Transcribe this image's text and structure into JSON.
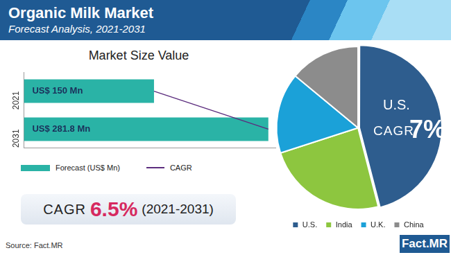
{
  "header": {
    "title": "Organic Milk Market",
    "subtitle": "Forecast Analysis, 2021-2031"
  },
  "chart_data": [
    {
      "type": "bar",
      "title": "Market Size Value",
      "orientation": "horizontal",
      "categories": [
        "2021",
        "2031"
      ],
      "series": [
        {
          "name": "Forecast (US$ Mn)",
          "type": "bar",
          "color": "#2ab3a6",
          "values": [
            150,
            281.8
          ],
          "value_labels": [
            "US$ 150 Mn",
            "US$ 281.8 Mn"
          ]
        },
        {
          "name": "CAGR",
          "type": "line",
          "color": "#5c2d7e",
          "values": [
            150,
            281.8
          ]
        }
      ],
      "xlim": [
        0,
        290
      ],
      "tick_labels": "y",
      "grid": false,
      "legend": "bottom",
      "data_labels": true,
      "annotations": [
        {
          "text": "CAGR"
        },
        {
          "text": "6.5%"
        },
        {
          "text": "(2021-2031)"
        }
      ]
    },
    {
      "type": "pie",
      "categories": [
        "U.S.",
        "India",
        "U.K.",
        "China"
      ],
      "values": [
        46,
        24,
        16,
        14
      ],
      "colors": [
        "#2e5d8e",
        "#8dc63f",
        "#1ba1d8",
        "#8c8c8c"
      ],
      "legend": "bottom",
      "data_labels": false,
      "annotations": [
        {
          "text": "U.S."
        },
        {
          "text": "CAGR"
        },
        {
          "text": "7%"
        }
      ]
    }
  ],
  "source": "Source: Fact.MR",
  "logo": "Fact.MR"
}
